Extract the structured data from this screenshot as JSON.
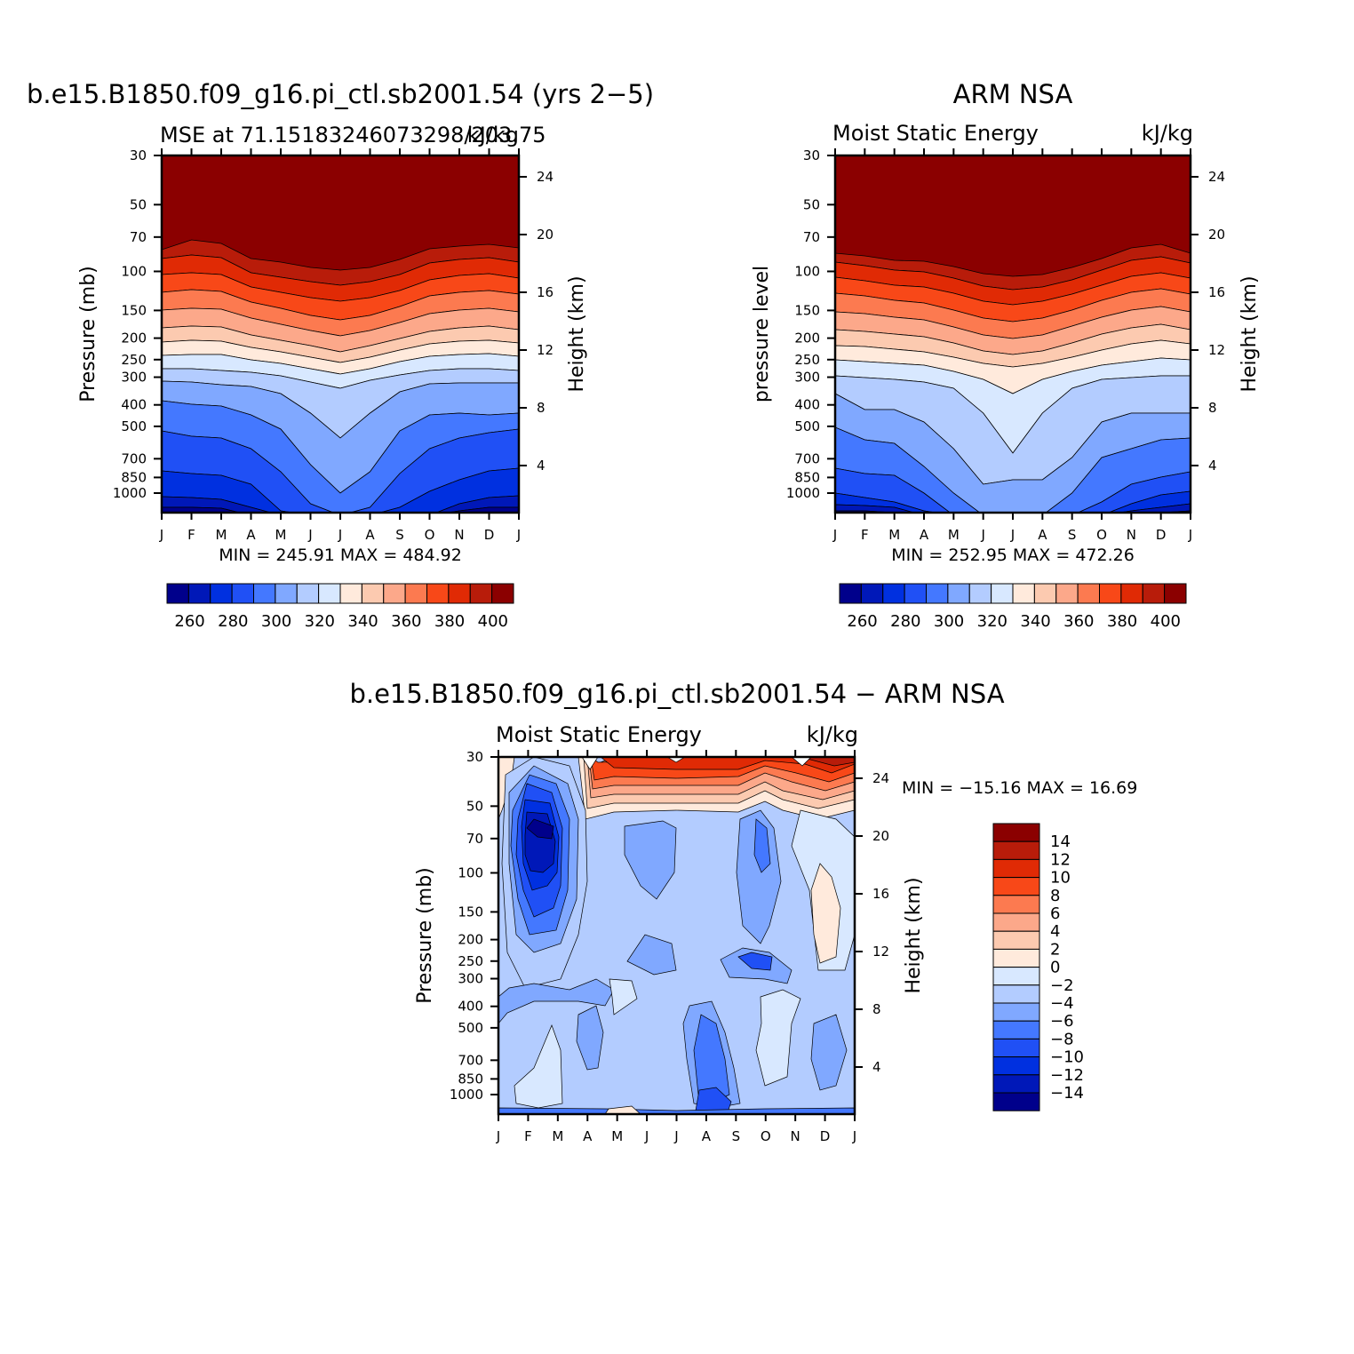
{
  "months": [
    "J",
    "F",
    "M",
    "A",
    "M",
    "J",
    "J",
    "A",
    "S",
    "O",
    "N",
    "D",
    "J"
  ],
  "pressure_ticks": [
    30,
    50,
    70,
    100,
    150,
    200,
    250,
    300,
    400,
    500,
    700,
    850,
    1000
  ],
  "height_ticks": [
    4,
    8,
    12,
    16,
    20,
    24
  ],
  "palette_abs": [
    "#00008b",
    "#0018b8",
    "#0030e0",
    "#2050f5",
    "#4478ff",
    "#80a8ff",
    "#b3ccff",
    "#d8e8ff",
    "#ffeadc",
    "#fccab0",
    "#fca88a",
    "#fc7a50",
    "#f84818",
    "#e02a05",
    "#b81c0a",
    "#8b0000"
  ],
  "palette_diff": [
    "#00008b",
    "#0018b8",
    "#0030e0",
    "#2050f5",
    "#4478ff",
    "#80a8ff",
    "#b3ccff",
    "#d8e8ff",
    "#ffeadc",
    "#fccab0",
    "#fca88a",
    "#fc7a50",
    "#f84818",
    "#e02a05",
    "#b81c0a",
    "#8b0000"
  ],
  "panel_model": {
    "title": "b.e15.B1850.f09_g16.pi_ctl.sb2001.54 (yrs 2−5)",
    "left_subtitle": "MSE at 71.15183246073298/203.75",
    "right_subtitle": "kJ/kg",
    "ylabel": "Pressure (mb)",
    "ylabel_right": "Height (km)",
    "minmax": "MIN = 245.91  MAX = 484.92",
    "colorbar_labels": [
      "260",
      "280",
      "300",
      "320",
      "340",
      "360",
      "380",
      "400"
    ]
  },
  "panel_obs": {
    "title": "ARM NSA",
    "left_subtitle": "Moist Static Energy",
    "right_subtitle": "kJ/kg",
    "ylabel": "pressure level",
    "ylabel_right": "Height (km)",
    "minmax": "MIN = 252.95  MAX = 472.26",
    "colorbar_labels": [
      "260",
      "280",
      "300",
      "320",
      "340",
      "360",
      "380",
      "400"
    ]
  },
  "panel_diff": {
    "title": "b.e15.B1850.f09_g16.pi_ctl.sb2001.54 − ARM NSA",
    "left_subtitle": "Moist Static Energy",
    "right_subtitle": "kJ/kg",
    "ylabel": "Pressure (mb)",
    "ylabel_right": "Height (km)",
    "minmax": "MIN = −15.16 MAX =   16.69",
    "colorbar_labels": [
      "14",
      "12",
      "10",
      "8",
      "6",
      "4",
      "2",
      "0",
      "−2",
      "−4",
      "−6",
      "−8",
      "−10",
      "−12",
      "−14"
    ]
  },
  "chart_data": [
    {
      "type": "heatmap",
      "title": "b.e15.B1850.f09_g16.pi_ctl.sb2001.54 (yrs 2−5)",
      "subtitle": "MSE at 71.15183246073298/203.75",
      "units": "kJ/kg",
      "xlabel": "",
      "ylabel": "Pressure (mb)",
      "ylabel_right": "Height (km)",
      "x": [
        "J",
        "F",
        "M",
        "A",
        "M",
        "J",
        "J",
        "A",
        "S",
        "O",
        "N",
        "D",
        "J"
      ],
      "y_pressure_mb": [
        30,
        50,
        70,
        100,
        150,
        200,
        250,
        300,
        400,
        500,
        700,
        850,
        1000
      ],
      "y_scale": "log, reversed",
      "contour_levels": [
        255,
        260,
        265,
        270,
        275,
        280,
        285,
        290,
        295,
        300,
        305,
        310,
        315,
        320,
        325,
        330,
        335,
        340,
        345,
        350,
        355,
        360,
        365,
        370,
        375,
        380,
        385,
        390,
        395,
        400
      ],
      "min": 245.91,
      "max": 484.92,
      "colorbar": {
        "orientation": "horizontal",
        "labels": [
          "260",
          "280",
          "300",
          "320",
          "340",
          "360",
          "380",
          "400"
        ]
      }
    },
    {
      "type": "heatmap",
      "title": "ARM NSA",
      "subtitle": "Moist Static Energy",
      "units": "kJ/kg",
      "xlabel": "",
      "ylabel": "pressure level",
      "ylabel_right": "Height (km)",
      "x": [
        "J",
        "F",
        "M",
        "A",
        "M",
        "J",
        "J",
        "A",
        "S",
        "O",
        "N",
        "D",
        "J"
      ],
      "y_pressure_mb": [
        30,
        50,
        70,
        100,
        150,
        200,
        250,
        300,
        400,
        500,
        700,
        850,
        1000
      ],
      "y_scale": "log, reversed",
      "min": 252.95,
      "max": 472.26,
      "colorbar": {
        "orientation": "horizontal",
        "labels": [
          "260",
          "280",
          "300",
          "320",
          "340",
          "360",
          "380",
          "400"
        ]
      }
    },
    {
      "type": "heatmap",
      "title": "b.e15.B1850.f09_g16.pi_ctl.sb2001.54 − ARM NSA",
      "subtitle": "Moist Static Energy",
      "units": "kJ/kg",
      "xlabel": "",
      "ylabel": "Pressure (mb)",
      "ylabel_right": "Height (km)",
      "x": [
        "J",
        "F",
        "M",
        "A",
        "M",
        "J",
        "J",
        "A",
        "S",
        "O",
        "N",
        "D",
        "J"
      ],
      "y_pressure_mb": [
        30,
        50,
        70,
        100,
        150,
        200,
        250,
        300,
        400,
        500,
        700,
        850,
        1000
      ],
      "y_scale": "log, reversed",
      "contour_levels": [
        -14,
        -12,
        -10,
        -8,
        -6,
        -4,
        -2,
        0,
        2,
        4,
        6,
        8,
        10,
        12,
        14
      ],
      "min": -15.16,
      "max": 16.69,
      "colorbar": {
        "orientation": "vertical",
        "labels": [
          "14",
          "12",
          "10",
          "8",
          "6",
          "4",
          "2",
          "0",
          "−2",
          "−4",
          "−6",
          "−8",
          "−10",
          "−12",
          "−14"
        ]
      }
    }
  ]
}
